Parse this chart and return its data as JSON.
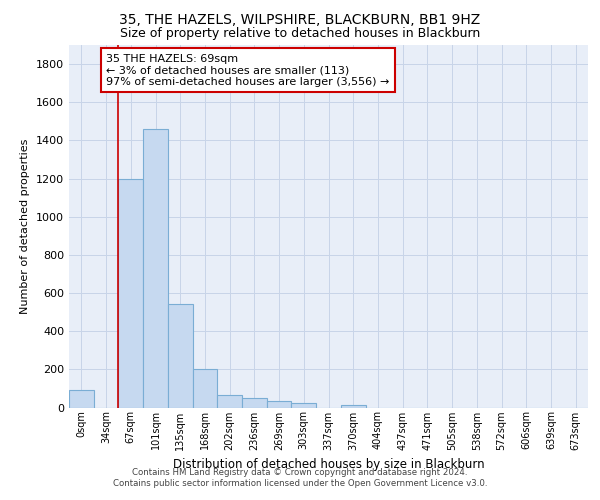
{
  "title1": "35, THE HAZELS, WILPSHIRE, BLACKBURN, BB1 9HZ",
  "title2": "Size of property relative to detached houses in Blackburn",
  "xlabel": "Distribution of detached houses by size in Blackburn",
  "ylabel": "Number of detached properties",
  "bar_labels": [
    "0sqm",
    "34sqm",
    "67sqm",
    "101sqm",
    "135sqm",
    "168sqm",
    "202sqm",
    "236sqm",
    "269sqm",
    "303sqm",
    "337sqm",
    "370sqm",
    "404sqm",
    "437sqm",
    "471sqm",
    "505sqm",
    "538sqm",
    "572sqm",
    "606sqm",
    "639sqm",
    "673sqm"
  ],
  "bar_values": [
    90,
    0,
    1200,
    1460,
    540,
    200,
    65,
    50,
    35,
    25,
    0,
    15,
    0,
    0,
    0,
    0,
    0,
    0,
    0,
    0,
    0
  ],
  "bar_color": "#c6d9f0",
  "bar_edge_color": "#7aadd4",
  "vline_color": "#cc0000",
  "annotation_line1": "35 THE HAZELS: 69sqm",
  "annotation_line2": "← 3% of detached houses are smaller (113)",
  "annotation_line3": "97% of semi-detached houses are larger (3,556) →",
  "annotation_box_color": "#ffffff",
  "annotation_box_edge": "#cc0000",
  "ylim": [
    0,
    1900
  ],
  "yticks": [
    0,
    200,
    400,
    600,
    800,
    1000,
    1200,
    1400,
    1600,
    1800
  ],
  "footer1": "Contains HM Land Registry data © Crown copyright and database right 2024.",
  "footer2": "Contains public sector information licensed under the Open Government Licence v3.0.",
  "grid_color": "#c8d4e8",
  "bg_color": "#e8eef8"
}
